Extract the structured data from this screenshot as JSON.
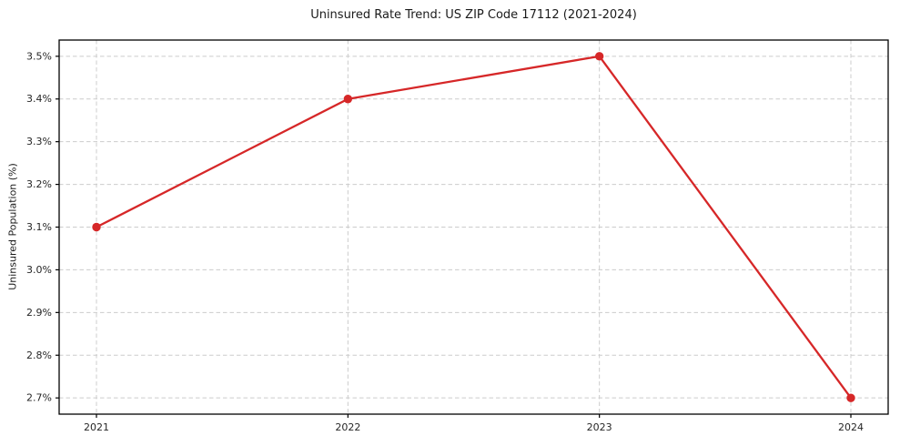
{
  "chart_data": {
    "type": "line",
    "title": "Uninsured Rate Trend: US ZIP Code 17112 (2021-2024)",
    "xlabel": "",
    "ylabel": "Uninsured Population (%)",
    "x": [
      "2021",
      "2022",
      "2023",
      "2024"
    ],
    "series": [
      {
        "name": "Uninsured rate",
        "color": "#d62728",
        "values": [
          3.1,
          3.4,
          3.5,
          2.7
        ]
      }
    ],
    "yticks": [
      2.7,
      2.8,
      2.9,
      3.0,
      3.1,
      3.2,
      3.3,
      3.4,
      3.5
    ],
    "ytick_labels": [
      "2.7%",
      "2.8%",
      "2.9%",
      "3.0%",
      "3.1%",
      "3.2%",
      "3.3%",
      "3.4%",
      "3.5%"
    ],
    "ylim": [
      2.662,
      3.538
    ],
    "x_pad_frac": 0.045,
    "grid": true,
    "grid_color": "#cccccc",
    "frame_color": "#000000",
    "legend_position": "none"
  }
}
